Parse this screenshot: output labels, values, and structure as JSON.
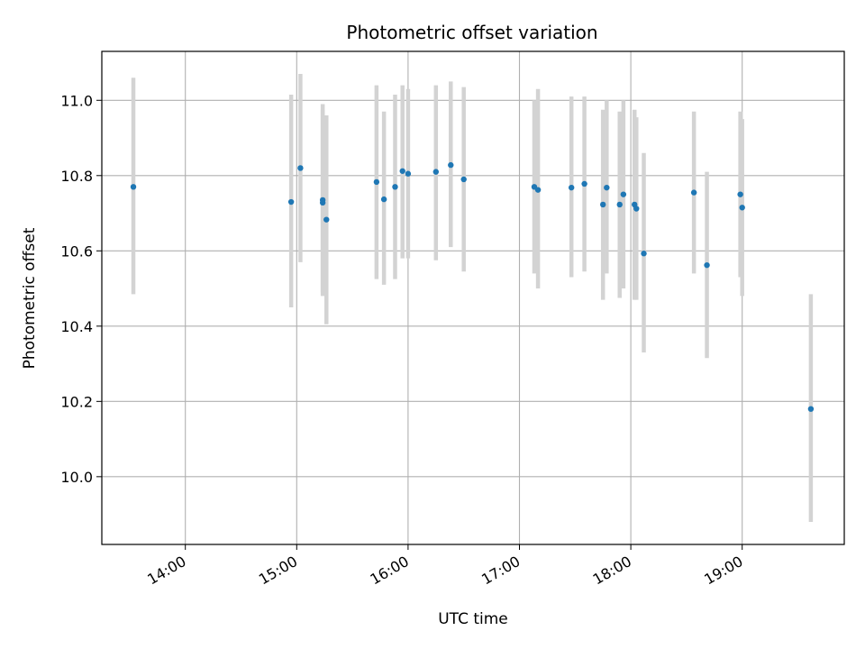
{
  "chart_data": {
    "type": "scatter",
    "title": "Photometric offset variation",
    "xlabel": "UTC time",
    "ylabel": "Photometric offset",
    "x_tick_labels": [
      "14:00",
      "15:00",
      "16:00",
      "17:00",
      "18:00",
      "19:00"
    ],
    "y_tick_labels": [
      "10.0",
      "10.2",
      "10.4",
      "10.6",
      "10.8",
      "11.0"
    ],
    "y_ticks": [
      10.0,
      10.2,
      10.4,
      10.6,
      10.8,
      11.0
    ],
    "xlim": [
      "13:15",
      "19:55"
    ],
    "ylim": [
      9.82,
      11.13
    ],
    "grid": true,
    "marker_color": "#1f77b4",
    "errorbar_color": "#d3d3d3",
    "points": [
      {
        "t": "13:32",
        "y": 10.77,
        "lo": 10.485,
        "hi": 11.06
      },
      {
        "t": "14:57",
        "y": 10.73,
        "lo": 10.45,
        "hi": 11.015
      },
      {
        "t": "15:02",
        "y": 10.82,
        "lo": 10.57,
        "hi": 11.07
      },
      {
        "t": "15:14",
        "y": 10.735,
        "lo": 10.48,
        "hi": 10.99
      },
      {
        "t": "15:14",
        "y": 10.728,
        "lo": 10.49,
        "hi": 10.975
      },
      {
        "t": "15:16",
        "y": 10.683,
        "lo": 10.405,
        "hi": 10.96
      },
      {
        "t": "15:43",
        "y": 10.783,
        "lo": 10.525,
        "hi": 11.04
      },
      {
        "t": "15:47",
        "y": 10.737,
        "lo": 10.51,
        "hi": 10.97
      },
      {
        "t": "15:53",
        "y": 10.77,
        "lo": 10.525,
        "hi": 11.015
      },
      {
        "t": "15:57",
        "y": 10.812,
        "lo": 10.58,
        "hi": 11.04
      },
      {
        "t": "16:00",
        "y": 10.805,
        "lo": 10.58,
        "hi": 11.03
      },
      {
        "t": "16:15",
        "y": 10.81,
        "lo": 10.575,
        "hi": 11.04
      },
      {
        "t": "16:23",
        "y": 10.828,
        "lo": 10.61,
        "hi": 11.05
      },
      {
        "t": "16:30",
        "y": 10.79,
        "lo": 10.545,
        "hi": 11.035
      },
      {
        "t": "17:08",
        "y": 10.77,
        "lo": 10.54,
        "hi": 11.0
      },
      {
        "t": "17:10",
        "y": 10.762,
        "lo": 10.5,
        "hi": 11.03
      },
      {
        "t": "17:28",
        "y": 10.768,
        "lo": 10.53,
        "hi": 11.01
      },
      {
        "t": "17:35",
        "y": 10.778,
        "lo": 10.545,
        "hi": 11.01
      },
      {
        "t": "17:45",
        "y": 10.723,
        "lo": 10.47,
        "hi": 10.975
      },
      {
        "t": "17:47",
        "y": 10.768,
        "lo": 10.54,
        "hi": 11.0
      },
      {
        "t": "17:54",
        "y": 10.723,
        "lo": 10.475,
        "hi": 10.97
      },
      {
        "t": "17:56",
        "y": 10.75,
        "lo": 10.5,
        "hi": 11.0
      },
      {
        "t": "18:02",
        "y": 10.723,
        "lo": 10.47,
        "hi": 10.975
      },
      {
        "t": "18:03",
        "y": 10.712,
        "lo": 10.47,
        "hi": 10.955
      },
      {
        "t": "18:07",
        "y": 10.593,
        "lo": 10.33,
        "hi": 10.86
      },
      {
        "t": "18:34",
        "y": 10.755,
        "lo": 10.54,
        "hi": 10.97
      },
      {
        "t": "18:41",
        "y": 10.562,
        "lo": 10.315,
        "hi": 10.81
      },
      {
        "t": "18:59",
        "y": 10.75,
        "lo": 10.53,
        "hi": 10.97
      },
      {
        "t": "19:00",
        "y": 10.715,
        "lo": 10.48,
        "hi": 10.95
      },
      {
        "t": "19:37",
        "y": 10.18,
        "lo": 9.88,
        "hi": 10.485
      }
    ]
  }
}
